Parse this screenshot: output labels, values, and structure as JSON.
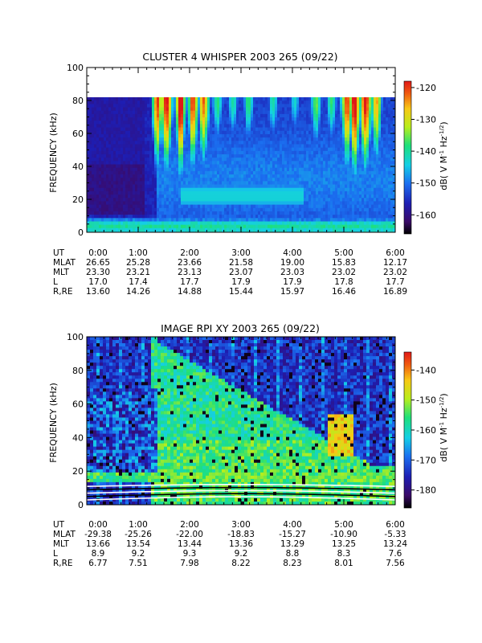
{
  "chart_data": [
    {
      "type": "heatmap",
      "title": "CLUSTER 4 WHISPER 2003 265 (09/22)",
      "ylabel": "FREQUENCY (kHz)",
      "ylim": [
        0,
        100
      ],
      "yticks": [
        "0",
        "20",
        "40",
        "60",
        "80",
        "100"
      ],
      "xlim_hours": [
        0,
        6
      ],
      "colorbar": {
        "label": "dB( V M⁻¹ Hz⁻¹ᐟ²)",
        "label_parts": [
          "dB( V M",
          "-1",
          " Hz",
          "-1/2",
          ")"
        ],
        "range": [
          -166,
          -118
        ],
        "ticks": [
          "-120",
          "-130",
          "-140",
          "-150",
          "-160"
        ],
        "tick_values": [
          -120,
          -130,
          -140,
          -150,
          -160
        ]
      },
      "ephemeris": {
        "labels": [
          "UT",
          "MLAT",
          "MLT",
          "L",
          "R,RE"
        ],
        "columns": [
          {
            "UT": "0:00",
            "MLAT": "26.65",
            "MLT": "23.30",
            "L": "17.0",
            "R,RE": "13.60"
          },
          {
            "UT": "1:00",
            "MLAT": "25.28",
            "MLT": "23.21",
            "L": "17.4",
            "R,RE": "14.26"
          },
          {
            "UT": "2:00",
            "MLAT": "23.66",
            "MLT": "23.13",
            "L": "17.7",
            "R,RE": "14.88"
          },
          {
            "UT": "3:00",
            "MLAT": "21.58",
            "MLT": "23.07",
            "L": "17.9",
            "R,RE": "15.44"
          },
          {
            "UT": "4:00",
            "MLAT": "19.00",
            "MLT": "23.03",
            "L": "17.9",
            "R,RE": "15.97"
          },
          {
            "UT": "5:00",
            "MLAT": "15.83",
            "MLT": "23.02",
            "L": "17.8",
            "R,RE": "16.46"
          },
          {
            "UT": "6:00",
            "MLAT": "12.17",
            "MLT": "23.02",
            "L": "17.7",
            "R,RE": "16.89"
          }
        ]
      }
    },
    {
      "type": "heatmap",
      "title": "IMAGE RPI XY 2003 265 (09/22)",
      "ylabel": "FREQUENCY (kHz)",
      "ylim": [
        0,
        100
      ],
      "yticks": [
        "0",
        "20",
        "40",
        "60",
        "80",
        "100"
      ],
      "xlim_hours": [
        0,
        6
      ],
      "colorbar": {
        "label_parts": [
          "dB( V M",
          "-1",
          " Hz",
          "-1/2",
          ")"
        ],
        "range": [
          -186,
          -134
        ],
        "ticks": [
          "-140",
          "-150",
          "-160",
          "-170",
          "-180"
        ],
        "tick_values": [
          -140,
          -150,
          -160,
          -170,
          -180
        ]
      },
      "ephemeris": {
        "labels": [
          "UT",
          "MLAT",
          "MLT",
          "L",
          "R,RE"
        ],
        "columns": [
          {
            "UT": "0:00",
            "MLAT": "-29.38",
            "MLT": "13.66",
            "L": "8.9",
            "R,RE": "6.77"
          },
          {
            "UT": "1:00",
            "MLAT": "-25.26",
            "MLT": "13.54",
            "L": "9.2",
            "R,RE": "7.51"
          },
          {
            "UT": "2:00",
            "MLAT": "-22.00",
            "MLT": "13.44",
            "L": "9.3",
            "R,RE": "7.98"
          },
          {
            "UT": "3:00",
            "MLAT": "-18.83",
            "MLT": "13.36",
            "L": "9.2",
            "R,RE": "8.22"
          },
          {
            "UT": "4:00",
            "MLAT": "-15.27",
            "MLT": "13.29",
            "L": "8.8",
            "R,RE": "8.23"
          },
          {
            "UT": "5:00",
            "MLAT": "-10.90",
            "MLT": "13.25",
            "L": "8.3",
            "R,RE": "8.01"
          },
          {
            "UT": "6:00",
            "MLAT": "-5.33",
            "MLT": "13.24",
            "L": "7.6",
            "R,RE": "7.56"
          }
        ]
      }
    }
  ]
}
